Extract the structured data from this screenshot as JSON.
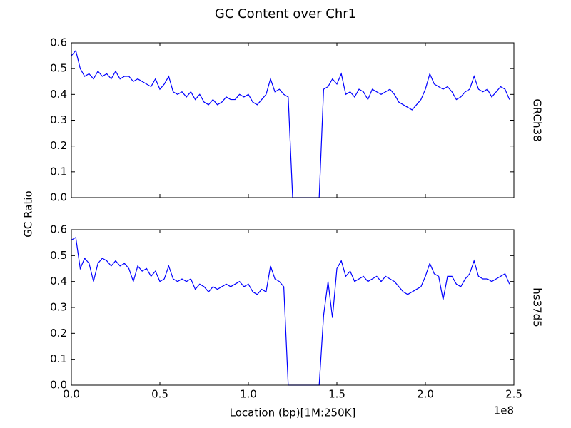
{
  "title": "GC Content over Chr1",
  "xlabel": "Location (bp)[1M:250K]",
  "ylabel": "GC Ratio",
  "x_offset_label": "1e8",
  "chart_data": [
    {
      "type": "line",
      "panel_label": "GRCh38",
      "x": [
        0,
        2500000,
        5000000,
        7500000,
        10000000,
        12500000,
        15000000,
        17500000,
        20000000,
        22500000,
        25000000,
        27500000,
        30000000,
        32500000,
        35000000,
        37500000,
        40000000,
        42500000,
        45000000,
        47500000,
        50000000,
        52500000,
        55000000,
        57500000,
        60000000,
        62500000,
        65000000,
        67500000,
        70000000,
        72500000,
        75000000,
        77500000,
        80000000,
        82500000,
        85000000,
        87500000,
        90000000,
        92500000,
        95000000,
        97500000,
        100000000,
        102500000,
        105000000,
        107500000,
        110000000,
        112500000,
        115000000,
        117500000,
        120000000,
        122500000,
        125000000,
        127500000,
        130000000,
        132500000,
        135000000,
        137500000,
        140000000,
        142500000,
        145000000,
        147500000,
        150000000,
        152500000,
        155000000,
        157500000,
        160000000,
        162500000,
        165000000,
        167500000,
        170000000,
        172500000,
        175000000,
        177500000,
        180000000,
        182500000,
        185000000,
        187500000,
        190000000,
        192500000,
        195000000,
        197500000,
        200000000,
        202500000,
        205000000,
        207500000,
        210000000,
        212500000,
        215000000,
        217500000,
        220000000,
        222500000,
        225000000,
        227500000,
        230000000,
        232500000,
        235000000,
        237500000,
        240000000,
        242500000,
        245000000,
        247500000
      ],
      "series": [
        {
          "color": "#0000ff",
          "values": [
            0.55,
            0.57,
            0.5,
            0.47,
            0.48,
            0.46,
            0.49,
            0.47,
            0.48,
            0.46,
            0.49,
            0.46,
            0.47,
            0.47,
            0.45,
            0.46,
            0.45,
            0.44,
            0.43,
            0.46,
            0.42,
            0.44,
            0.47,
            0.41,
            0.4,
            0.41,
            0.39,
            0.41,
            0.38,
            0.4,
            0.37,
            0.36,
            0.38,
            0.36,
            0.37,
            0.39,
            0.38,
            0.38,
            0.4,
            0.39,
            0.4,
            0.37,
            0.36,
            0.38,
            0.4,
            0.46,
            0.41,
            0.42,
            0.4,
            0.39,
            0,
            0,
            0,
            0,
            0,
            0,
            0,
            0.42,
            0.43,
            0.46,
            0.44,
            0.48,
            0.4,
            0.41,
            0.39,
            0.42,
            0.41,
            0.38,
            0.42,
            0.41,
            0.4,
            0.41,
            0.42,
            0.4,
            0.37,
            0.36,
            0.35,
            0.34,
            0.36,
            0.38,
            0.42,
            0.48,
            0.44,
            0.43,
            0.42,
            0.43,
            0.41,
            0.38,
            0.39,
            0.41,
            0.42,
            0.47,
            0.42,
            0.41,
            0.42,
            0.39,
            0.41,
            0.43,
            0.42,
            0.38
          ]
        }
      ],
      "xlim": [
        0,
        250000000
      ],
      "ylim": [
        0,
        0.6
      ],
      "xticks": [
        {
          "value": 0,
          "label": "0.0"
        },
        {
          "value": 50000000,
          "label": "0.5"
        },
        {
          "value": 100000000,
          "label": "1.0"
        },
        {
          "value": 150000000,
          "label": "1.5"
        },
        {
          "value": 200000000,
          "label": "2.0"
        },
        {
          "value": 250000000,
          "label": "2.5"
        }
      ],
      "yticks": [
        {
          "value": 0,
          "label": "0.0"
        },
        0.1,
        0.2,
        0.3,
        0.4,
        0.5,
        0.6
      ]
    },
    {
      "type": "line",
      "panel_label": "hs37d5",
      "x": [
        0,
        2500000,
        5000000,
        7500000,
        10000000,
        12500000,
        15000000,
        17500000,
        20000000,
        22500000,
        25000000,
        27500000,
        30000000,
        32500000,
        35000000,
        37500000,
        40000000,
        42500000,
        45000000,
        47500000,
        50000000,
        52500000,
        55000000,
        57500000,
        60000000,
        62500000,
        65000000,
        67500000,
        70000000,
        72500000,
        75000000,
        77500000,
        80000000,
        82500000,
        85000000,
        87500000,
        90000000,
        92500000,
        95000000,
        97500000,
        100000000,
        102500000,
        105000000,
        107500000,
        110000000,
        112500000,
        115000000,
        117500000,
        120000000,
        122500000,
        125000000,
        127500000,
        130000000,
        132500000,
        135000000,
        137500000,
        140000000,
        142500000,
        145000000,
        147500000,
        150000000,
        152500000,
        155000000,
        157500000,
        160000000,
        162500000,
        165000000,
        167500000,
        170000000,
        172500000,
        175000000,
        177500000,
        180000000,
        182500000,
        185000000,
        187500000,
        190000000,
        192500000,
        195000000,
        197500000,
        200000000,
        202500000,
        205000000,
        207500000,
        210000000,
        212500000,
        215000000,
        217500000,
        220000000,
        222500000,
        225000000,
        227500000,
        230000000,
        232500000,
        235000000,
        237500000,
        240000000,
        242500000,
        245000000,
        247500000
      ],
      "series": [
        {
          "color": "#0000ff",
          "values": [
            0.56,
            0.57,
            0.45,
            0.49,
            0.47,
            0.4,
            0.47,
            0.49,
            0.48,
            0.46,
            0.48,
            0.46,
            0.47,
            0.45,
            0.4,
            0.46,
            0.44,
            0.45,
            0.42,
            0.44,
            0.4,
            0.41,
            0.46,
            0.41,
            0.4,
            0.41,
            0.4,
            0.41,
            0.37,
            0.39,
            0.38,
            0.36,
            0.38,
            0.37,
            0.38,
            0.39,
            0.38,
            0.39,
            0.4,
            0.38,
            0.39,
            0.36,
            0.35,
            0.37,
            0.36,
            0.46,
            0.41,
            0.4,
            0.38,
            0,
            0,
            0,
            0,
            0,
            0,
            0,
            0,
            0.27,
            0.4,
            0.26,
            0.45,
            0.48,
            0.42,
            0.44,
            0.4,
            0.41,
            0.42,
            0.4,
            0.41,
            0.42,
            0.4,
            0.42,
            0.41,
            0.4,
            0.38,
            0.36,
            0.35,
            0.36,
            0.37,
            0.38,
            0.42,
            0.47,
            0.43,
            0.42,
            0.33,
            0.42,
            0.42,
            0.39,
            0.38,
            0.41,
            0.43,
            0.48,
            0.42,
            0.41,
            0.41,
            0.4,
            0.41,
            0.42,
            0.43,
            0.39
          ]
        }
      ],
      "xlim": [
        0,
        250000000
      ],
      "ylim": [
        0,
        0.6
      ],
      "xticks": [
        {
          "value": 0,
          "label": "0.0"
        },
        {
          "value": 50000000,
          "label": "0.5"
        },
        {
          "value": 100000000,
          "label": "1.0"
        },
        {
          "value": 150000000,
          "label": "1.5"
        },
        {
          "value": 200000000,
          "label": "2.0"
        },
        {
          "value": 250000000,
          "label": "2.5"
        }
      ],
      "yticks": [
        {
          "value": 0,
          "label": "0.0"
        },
        0.1,
        0.2,
        0.3,
        0.4,
        0.5,
        0.6
      ]
    }
  ]
}
